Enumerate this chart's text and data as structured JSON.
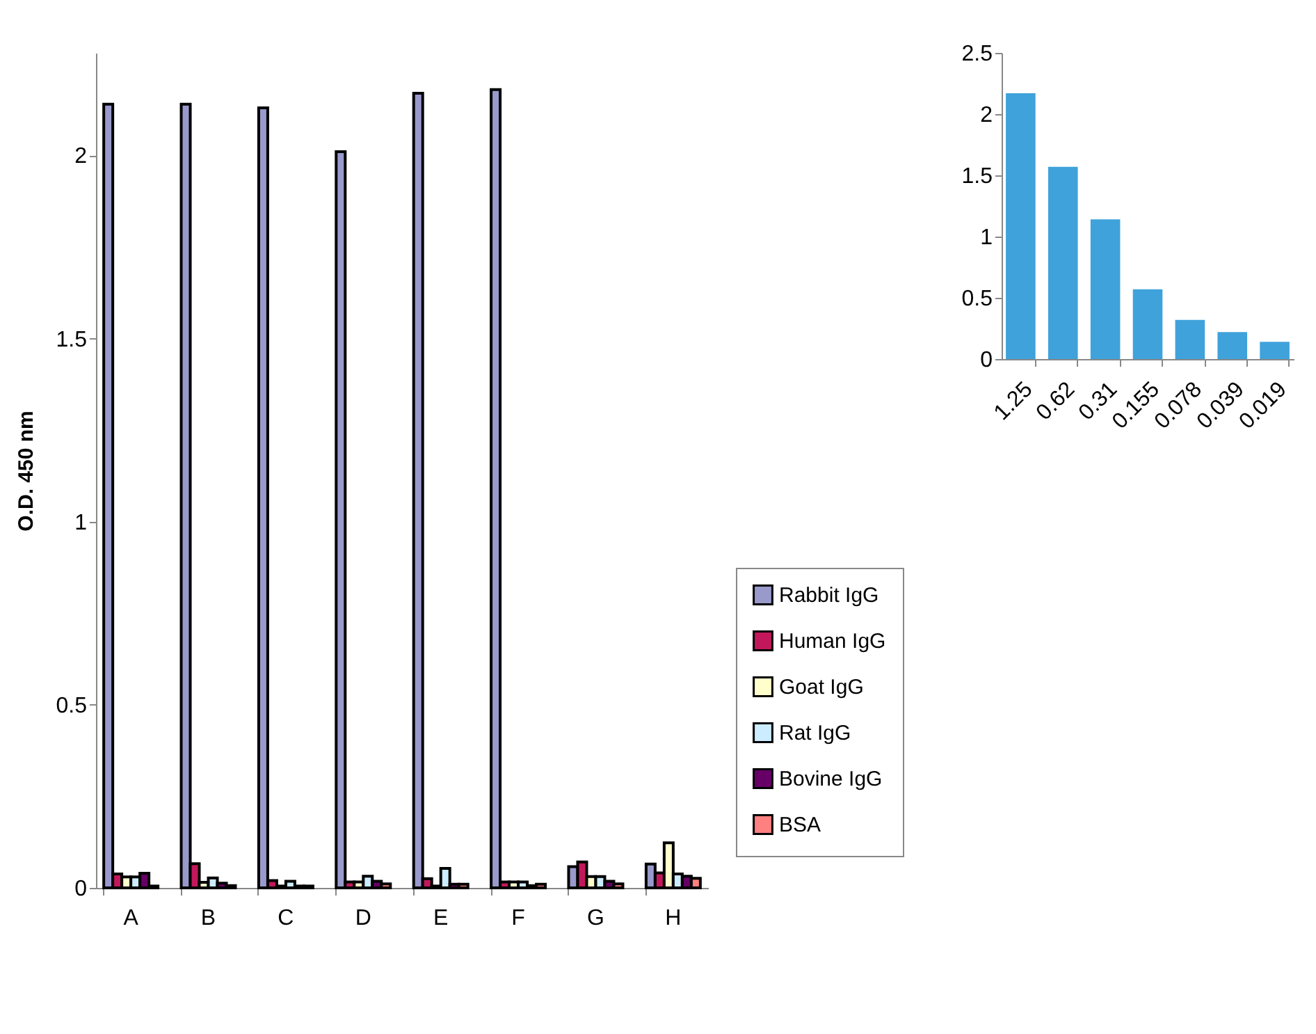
{
  "chart_data": [
    {
      "type": "bar",
      "categories": [
        "A",
        "B",
        "C",
        "D",
        "E",
        "F",
        "G",
        "H"
      ],
      "ylabel": "O.D. 450 nm",
      "ylim": [
        0,
        2.28
      ],
      "yticks": [
        0,
        0.5,
        1,
        1.5,
        2
      ],
      "grid": false,
      "legend": "bottom right",
      "series": [
        {
          "name": "Rabbit IgG",
          "color": "#9999cc",
          "values": [
            2.14,
            2.14,
            2.13,
            2.01,
            2.17,
            2.18,
            0.058,
            0.065
          ]
        },
        {
          "name": "Human IgG",
          "color": "#c2185b",
          "values": [
            0.038,
            0.066,
            0.02,
            0.016,
            0.025,
            0.016,
            0.071,
            0.041
          ]
        },
        {
          "name": "Goat IgG",
          "color": "#ffffcc",
          "values": [
            0.03,
            0.015,
            0.005,
            0.016,
            0.005,
            0.016,
            0.031,
            0.123
          ]
        },
        {
          "name": "Rat IgG",
          "color": "#ccecff",
          "values": [
            0.03,
            0.027,
            0.018,
            0.032,
            0.053,
            0.016,
            0.031,
            0.038
          ]
        },
        {
          "name": "Bovine IgG",
          "color": "#660066",
          "values": [
            0.04,
            0.013,
            0.005,
            0.018,
            0.01,
            0.006,
            0.018,
            0.032
          ]
        },
        {
          "name": "BSA",
          "color": "#ff8080",
          "values": [
            0.005,
            0.006,
            0.005,
            0.011,
            0.01,
            0.01,
            0.011,
            0.026
          ]
        }
      ]
    },
    {
      "type": "bar",
      "categories": [
        "1.25",
        "0.62",
        "0.31",
        "0.155",
        "0.078",
        "0.039",
        "0.019"
      ],
      "values": [
        2.17,
        1.57,
        1.14,
        0.57,
        0.32,
        0.22,
        0.14
      ],
      "color": "#3fa2db",
      "ylim": [
        0,
        2.5
      ],
      "yticks": [
        0,
        0.5,
        1,
        1.5,
        2,
        2.5
      ],
      "grid": false
    }
  ]
}
